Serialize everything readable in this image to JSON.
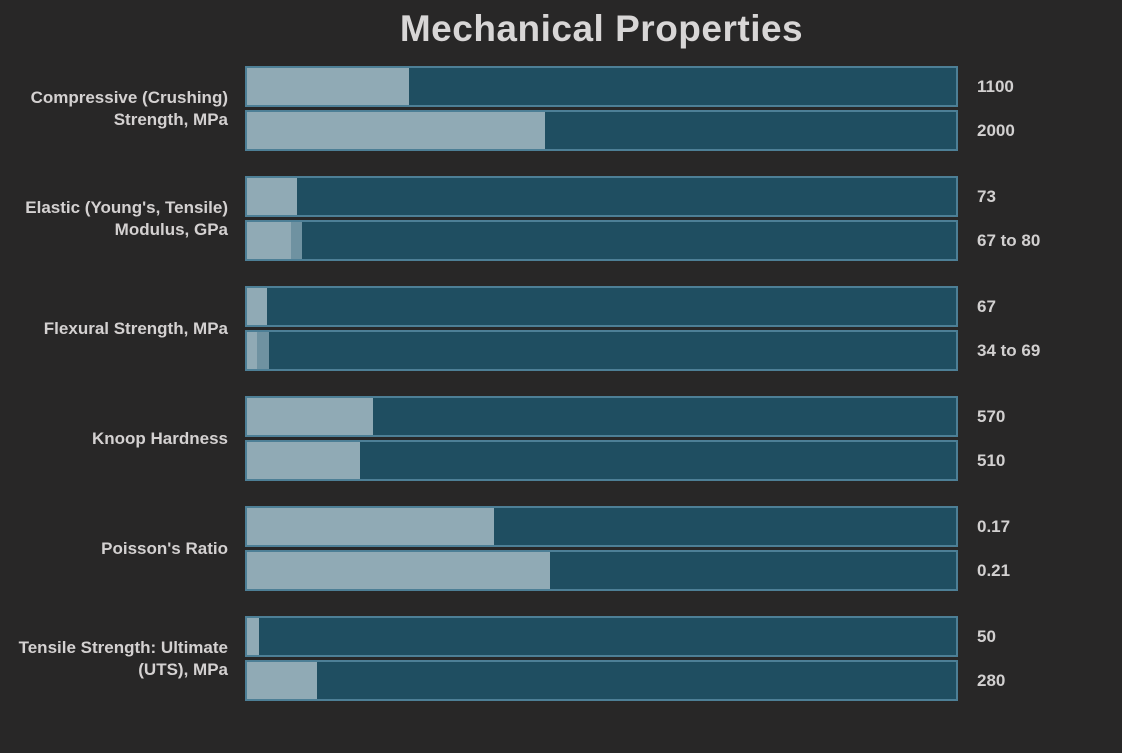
{
  "page": {
    "background": "#282727"
  },
  "chart_data": {
    "type": "bar",
    "orientation": "horizontal",
    "title": "Mechanical Properties",
    "grid": false,
    "legend": "none",
    "axis_labels": "none",
    "value_label_position": "right-of-bar",
    "bars_per_category": 2,
    "categories": [
      "Compressive (Crushing) Strength, MPa",
      "Elastic (Young's, Tensile) Modulus, GPa",
      "Flexural Strength, MPa",
      "Knoop Hardness",
      "Poisson's Ratio",
      "Tensile Strength: Ultimate (UTS), MPa"
    ],
    "groups": [
      {
        "label": "Compressive (Crushing) Strength, MPa",
        "bars": [
          {
            "value_label": "1100",
            "value": 1100,
            "fill_pct": 22.8
          },
          {
            "value_label": "2000",
            "value": 2000,
            "fill_pct": 42.0
          }
        ]
      },
      {
        "label": "Elastic (Young's, Tensile) Modulus, GPa",
        "bars": [
          {
            "value_label": "73",
            "value": 73,
            "fill_pct": 7.1
          },
          {
            "value_label": "67 to 80",
            "value_min": 67,
            "value_max": 80,
            "fill_pct": 6.2,
            "range_pct": 7.8
          }
        ]
      },
      {
        "label": "Flexural Strength, MPa",
        "bars": [
          {
            "value_label": "67",
            "value": 67,
            "fill_pct": 2.8
          },
          {
            "value_label": "34 to 69",
            "value_min": 34,
            "value_max": 69,
            "fill_pct": 1.4,
            "range_pct": 3.1
          }
        ]
      },
      {
        "label": "Knoop Hardness",
        "bars": [
          {
            "value_label": "570",
            "value": 570,
            "fill_pct": 17.8
          },
          {
            "value_label": "510",
            "value": 510,
            "fill_pct": 15.9
          }
        ]
      },
      {
        "label": "Poisson's Ratio",
        "bars": [
          {
            "value_label": "0.17",
            "value": 0.17,
            "fill_pct": 34.8
          },
          {
            "value_label": "0.21",
            "value": 0.21,
            "fill_pct": 42.7
          }
        ]
      },
      {
        "label": "Tensile Strength: Ultimate (UTS), MPa",
        "bars": [
          {
            "value_label": "50",
            "value": 50,
            "fill_pct": 1.7
          },
          {
            "value_label": "280",
            "value": 280,
            "fill_pct": 9.9
          }
        ]
      }
    ],
    "colors": {
      "background": "#282727",
      "bar_track": "#1f4e61",
      "bar_fill": "#90aab5",
      "bar_fill_range": "#6f92a1",
      "bar_border": "#4d7f96",
      "text": "#d6d4d4"
    }
  }
}
